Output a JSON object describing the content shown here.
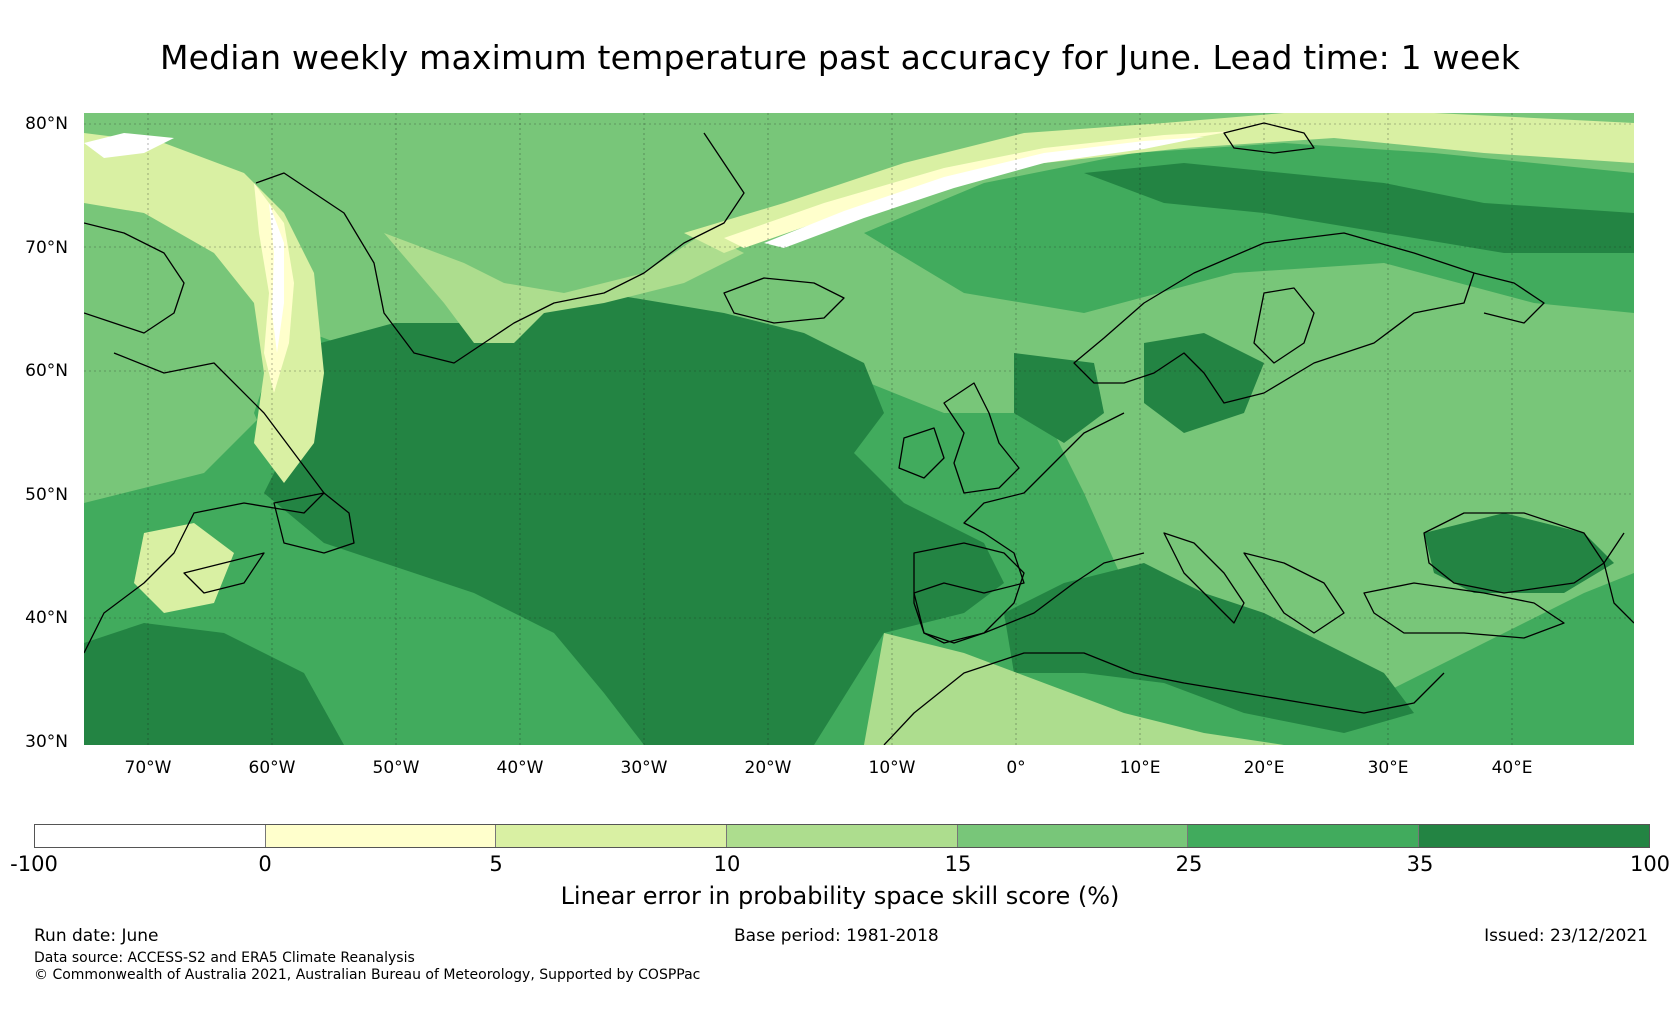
{
  "title": "Median weekly maximum temperature past accuracy for June. Lead time: 1 week",
  "latitude_labels": [
    "80°N",
    "70°N",
    "60°N",
    "50°N",
    "40°N",
    "30°N"
  ],
  "longitude_labels": [
    "70°W",
    "60°W",
    "50°W",
    "40°W",
    "30°W",
    "20°W",
    "10°W",
    "0°",
    "10°E",
    "20°E",
    "30°E",
    "40°E"
  ],
  "colorbar": {
    "label": "Linear error in probability space skill score (%)",
    "ticks": [
      "-100",
      "0",
      "5",
      "10",
      "15",
      "25",
      "35",
      "100"
    ],
    "segments": [
      {
        "from": -100,
        "to": 0,
        "color": "#ffffff"
      },
      {
        "from": 0,
        "to": 5,
        "color": "#ffffcc"
      },
      {
        "from": 5,
        "to": 10,
        "color": "#d9f0a3"
      },
      {
        "from": 10,
        "to": 15,
        "color": "#addd8e"
      },
      {
        "from": 15,
        "to": 25,
        "color": "#78c679"
      },
      {
        "from": 25,
        "to": 35,
        "color": "#41ab5d"
      },
      {
        "from": 35,
        "to": 100,
        "color": "#238443"
      }
    ]
  },
  "footer": {
    "run_date": "Run date: June",
    "base_period": "Base period: 1981-2018",
    "issued": "Issued: 23/12/2021",
    "data_source": "Data source: ACCESS-S2 and ERA5 Climate Reanalysis",
    "copyright": "© Commonwealth of Australia 2021, Australian Bureau of Meteorology, Supported by COSPPac"
  }
}
